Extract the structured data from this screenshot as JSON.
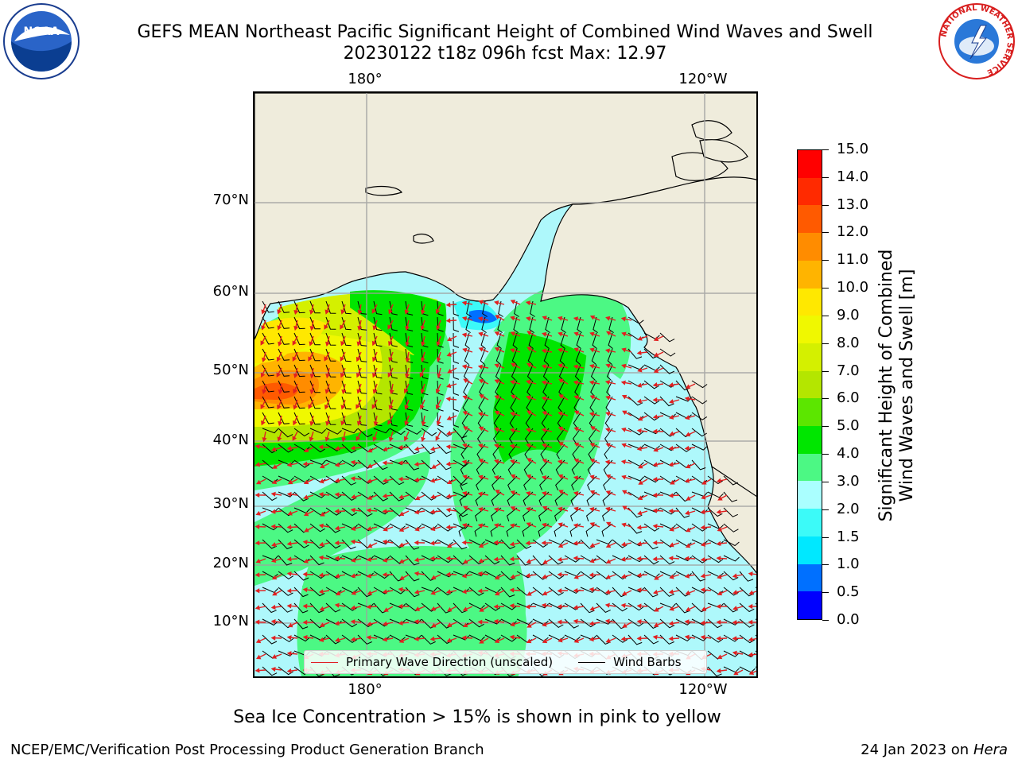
{
  "header": {
    "title": "GEFS MEAN Northeast Pacific Significant Height of Combined Wind Waves and Swell",
    "subtitle": "20230122 t18z 096h fcst   Max: 12.97"
  },
  "logos": {
    "left": "NOAA",
    "right_ring_text": "NATIONAL WEATHER SERVICE"
  },
  "map": {
    "lon_labels": [
      "180°",
      "120°W"
    ],
    "lat_labels": [
      "70°N",
      "60°N",
      "50°N",
      "40°N",
      "30°N",
      "20°N",
      "10°N"
    ],
    "legend": {
      "wave_direction": "Primary Wave Direction (unscaled)",
      "wind_barbs": "Wind Barbs"
    },
    "colors": {
      "land": "#efecdc",
      "ocean_low": "#aef8fb",
      "wave_arrow": "#e02020",
      "barb": "#000000"
    }
  },
  "colorbar": {
    "title_line1": "Significant Height of Combined",
    "title_line2": "Wind Waves and Swell [m]",
    "ticks": [
      "0.0",
      "0.5",
      "1.0",
      "1.5",
      "2.0",
      "3.0",
      "4.0",
      "5.0",
      "6.0",
      "7.0",
      "8.0",
      "9.0",
      "10.0",
      "11.0",
      "12.0",
      "13.0",
      "14.0",
      "15.0"
    ],
    "colors": [
      "#0000ff",
      "#0070ff",
      "#00e8ff",
      "#3cfaf8",
      "#aaffff",
      "#4cf884",
      "#00e600",
      "#5ce600",
      "#b4e600",
      "#d4f000",
      "#f0f800",
      "#ffe800",
      "#ffb400",
      "#ff8c00",
      "#ff5a00",
      "#ff2a00",
      "#ff0000"
    ]
  },
  "footnote": "Sea Ice Concentration > 15% is shown in pink to yellow",
  "footer": {
    "left": "NCEP/EMC/Verification Post Processing Product Generation Branch",
    "right_prefix": "24 Jan 2023 on ",
    "right_host": "Hera"
  }
}
